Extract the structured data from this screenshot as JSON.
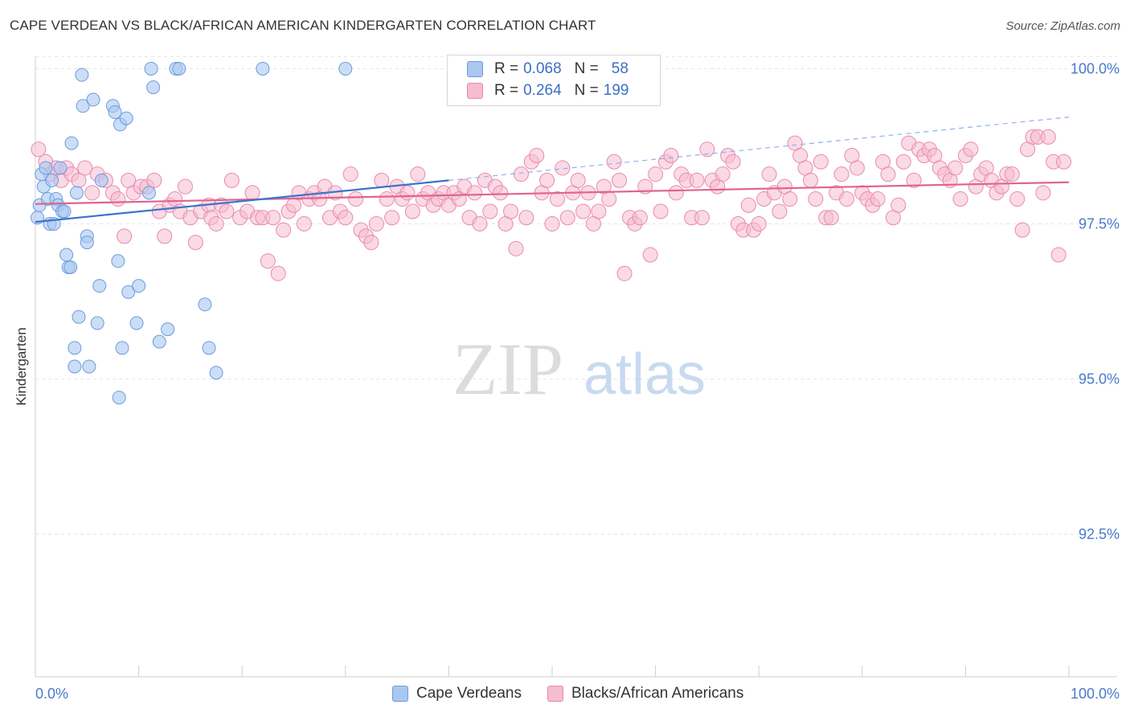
{
  "header": {
    "title": "CAPE VERDEAN VS BLACK/AFRICAN AMERICAN KINDERGARTEN CORRELATION CHART",
    "source": "Source: ZipAtlas.com"
  },
  "watermark": {
    "zip": "ZIP",
    "atlas": "atlas"
  },
  "legend": {
    "rows": [
      {
        "r_label": "R =",
        "r_value": "0.068",
        "n_label": "N =",
        "n_value": "58",
        "color": "#a9c8f0",
        "border": "#6b9be0"
      },
      {
        "r_label": "R =",
        "r_value": "0.264",
        "n_label": "N =",
        "n_value": "199",
        "color": "#f6bcd0",
        "border": "#e88aae"
      }
    ]
  },
  "bottom_legend": [
    {
      "label": "Cape Verdeans",
      "color": "#a9c8f0",
      "border": "#6b9be0"
    },
    {
      "label": "Blacks/African Americans",
      "color": "#f6bcd0",
      "border": "#e88aae"
    }
  ],
  "chart_data": {
    "type": "scatter",
    "title": "CAPE VERDEAN VS BLACK/AFRICAN AMERICAN KINDERGARTEN CORRELATION CHART",
    "xlabel": "",
    "ylabel": "Kindergarten",
    "xlim": [
      0,
      100
    ],
    "ylim": [
      90.2,
      100.2
    ],
    "x_tick_labels": [
      "0.0%",
      "100.0%"
    ],
    "y_ticks": [
      92.5,
      95.0,
      97.5,
      100.0
    ],
    "y_tick_labels": [
      "92.5%",
      "95.0%",
      "97.5%",
      "100.0%"
    ],
    "grid": true,
    "legend_position": "top-center",
    "series": [
      {
        "name": "Cape Verdeans",
        "color": "#a9c8f0",
        "stroke": "#6b9be0",
        "line_color": "#3a74cc",
        "trend": {
          "x0": 0,
          "y0": 97.53,
          "x1": 40,
          "y1": 98.2,
          "dash_to": 100,
          "dash_y": 99.22
        },
        "points": [
          [
            0.2,
            97.6
          ],
          [
            0.4,
            97.8
          ],
          [
            0.6,
            98.3
          ],
          [
            0.8,
            98.1
          ],
          [
            1.0,
            98.4
          ],
          [
            1.2,
            97.9
          ],
          [
            1.4,
            97.5
          ],
          [
            1.6,
            98.2
          ],
          [
            1.8,
            97.5
          ],
          [
            2.0,
            97.9
          ],
          [
            2.2,
            97.8
          ],
          [
            2.4,
            98.4
          ],
          [
            2.6,
            97.7
          ],
          [
            2.8,
            97.7
          ],
          [
            3.0,
            97.0
          ],
          [
            3.2,
            96.8
          ],
          [
            3.4,
            96.8
          ],
          [
            3.5,
            98.8
          ],
          [
            3.8,
            95.5
          ],
          [
            3.8,
            95.2
          ],
          [
            4.0,
            98.0
          ],
          [
            4.2,
            96.0
          ],
          [
            4.5,
            99.9
          ],
          [
            4.6,
            99.4
          ],
          [
            5.0,
            97.3
          ],
          [
            5.0,
            97.2
          ],
          [
            5.2,
            95.2
          ],
          [
            5.6,
            99.5
          ],
          [
            6.0,
            95.9
          ],
          [
            6.2,
            96.5
          ],
          [
            6.4,
            98.2
          ],
          [
            7.5,
            99.4
          ],
          [
            7.7,
            99.3
          ],
          [
            8.0,
            96.9
          ],
          [
            8.1,
            94.7
          ],
          [
            8.2,
            99.1
          ],
          [
            8.4,
            95.5
          ],
          [
            8.8,
            99.2
          ],
          [
            9.0,
            96.4
          ],
          [
            9.8,
            95.9
          ],
          [
            10.0,
            96.5
          ],
          [
            11.0,
            98.0
          ],
          [
            11.2,
            100.0
          ],
          [
            11.4,
            99.7
          ],
          [
            12.0,
            95.6
          ],
          [
            12.8,
            95.8
          ],
          [
            13.6,
            100.0
          ],
          [
            13.9,
            100.0
          ],
          [
            16.4,
            96.2
          ],
          [
            16.8,
            95.5
          ],
          [
            17.5,
            95.1
          ],
          [
            22.0,
            100.0
          ],
          [
            30.0,
            100.0
          ]
        ]
      },
      {
        "name": "Blacks/African Americans",
        "color": "#f6bcd0",
        "stroke": "#e88aae",
        "line_color": "#e0648e",
        "trend": {
          "x0": 0,
          "y0": 97.82,
          "x1": 100,
          "y1": 98.17
        },
        "points": [
          [
            0.3,
            98.7
          ],
          [
            1.0,
            98.5
          ],
          [
            1.5,
            98.3
          ],
          [
            2.0,
            98.4
          ],
          [
            2.5,
            98.2
          ],
          [
            3.0,
            98.4
          ],
          [
            3.5,
            98.3
          ],
          [
            4.2,
            98.2
          ],
          [
            4.8,
            98.4
          ],
          [
            5.5,
            98.0
          ],
          [
            6.0,
            98.3
          ],
          [
            6.8,
            98.2
          ],
          [
            7.5,
            98.0
          ],
          [
            8.0,
            97.9
          ],
          [
            8.6,
            97.3
          ],
          [
            9.0,
            98.2
          ],
          [
            9.5,
            98.0
          ],
          [
            10.2,
            98.1
          ],
          [
            10.8,
            98.1
          ],
          [
            11.5,
            98.2
          ],
          [
            12.0,
            97.7
          ],
          [
            12.5,
            97.3
          ],
          [
            13.0,
            97.8
          ],
          [
            13.5,
            97.9
          ],
          [
            14.0,
            97.7
          ],
          [
            14.5,
            98.1
          ],
          [
            15.0,
            97.6
          ],
          [
            15.5,
            97.2
          ],
          [
            16.0,
            97.7
          ],
          [
            16.8,
            97.8
          ],
          [
            17.0,
            97.6
          ],
          [
            17.5,
            97.5
          ],
          [
            18.0,
            97.8
          ],
          [
            18.5,
            97.7
          ],
          [
            19.0,
            98.2
          ],
          [
            19.8,
            97.6
          ],
          [
            20.5,
            97.7
          ],
          [
            21.0,
            98.0
          ],
          [
            21.5,
            97.6
          ],
          [
            22.0,
            97.6
          ],
          [
            22.5,
            96.9
          ],
          [
            23.0,
            97.6
          ],
          [
            23.5,
            96.7
          ],
          [
            24.0,
            97.4
          ],
          [
            24.5,
            97.7
          ],
          [
            25.0,
            97.8
          ],
          [
            25.5,
            98.0
          ],
          [
            26.0,
            97.5
          ],
          [
            26.5,
            97.9
          ],
          [
            27.0,
            98.0
          ],
          [
            27.5,
            97.9
          ],
          [
            28.0,
            98.1
          ],
          [
            28.5,
            97.6
          ],
          [
            29.0,
            98.0
          ],
          [
            29.5,
            97.7
          ],
          [
            30.0,
            97.6
          ],
          [
            30.5,
            98.3
          ],
          [
            31.0,
            97.9
          ],
          [
            31.5,
            97.4
          ],
          [
            32.0,
            97.3
          ],
          [
            32.5,
            97.2
          ],
          [
            33.0,
            97.5
          ],
          [
            33.5,
            98.2
          ],
          [
            34.0,
            97.9
          ],
          [
            34.5,
            97.6
          ],
          [
            35.0,
            98.1
          ],
          [
            35.5,
            97.9
          ],
          [
            36.0,
            98.0
          ],
          [
            36.5,
            97.7
          ],
          [
            37.0,
            98.3
          ],
          [
            37.5,
            97.9
          ],
          [
            38.0,
            98.0
          ],
          [
            38.5,
            97.8
          ],
          [
            39.0,
            97.9
          ],
          [
            39.5,
            98.0
          ],
          [
            40.0,
            97.8
          ],
          [
            40.5,
            98.0
          ],
          [
            41.0,
            97.9
          ],
          [
            41.5,
            98.1
          ],
          [
            42.0,
            97.6
          ],
          [
            42.5,
            98.0
          ],
          [
            43.0,
            97.5
          ],
          [
            43.5,
            98.2
          ],
          [
            44.0,
            97.7
          ],
          [
            44.5,
            98.1
          ],
          [
            45.0,
            98.0
          ],
          [
            45.5,
            97.5
          ],
          [
            46.0,
            97.7
          ],
          [
            46.5,
            97.1
          ],
          [
            47.0,
            98.3
          ],
          [
            47.5,
            97.6
          ],
          [
            48.0,
            98.5
          ],
          [
            48.5,
            98.6
          ],
          [
            49.0,
            98.0
          ],
          [
            49.5,
            98.2
          ],
          [
            50.0,
            97.5
          ],
          [
            50.5,
            97.9
          ],
          [
            51.0,
            98.4
          ],
          [
            51.5,
            97.6
          ],
          [
            52.0,
            98.0
          ],
          [
            52.5,
            98.2
          ],
          [
            53.0,
            97.7
          ],
          [
            53.5,
            98.0
          ],
          [
            54.0,
            97.5
          ],
          [
            54.5,
            97.7
          ],
          [
            55.0,
            98.1
          ],
          [
            55.5,
            97.9
          ],
          [
            56.0,
            98.5
          ],
          [
            56.5,
            98.2
          ],
          [
            57.0,
            96.7
          ],
          [
            57.5,
            97.6
          ],
          [
            58.0,
            97.5
          ],
          [
            58.5,
            97.6
          ],
          [
            59.0,
            98.1
          ],
          [
            59.5,
            97.0
          ],
          [
            60.0,
            98.3
          ],
          [
            60.5,
            97.7
          ],
          [
            61.0,
            98.5
          ],
          [
            61.5,
            98.6
          ],
          [
            62.0,
            98.0
          ],
          [
            62.5,
            98.3
          ],
          [
            63.0,
            98.2
          ],
          [
            63.5,
            97.6
          ],
          [
            64.0,
            98.2
          ],
          [
            64.5,
            97.6
          ],
          [
            65.0,
            98.7
          ],
          [
            65.5,
            98.2
          ],
          [
            66.0,
            98.1
          ],
          [
            66.5,
            98.3
          ],
          [
            67.0,
            98.6
          ],
          [
            67.5,
            98.5
          ],
          [
            68.0,
            97.5
          ],
          [
            68.5,
            97.4
          ],
          [
            69.0,
            97.8
          ],
          [
            69.5,
            97.4
          ],
          [
            70.0,
            97.5
          ],
          [
            70.5,
            97.9
          ],
          [
            71.0,
            98.3
          ],
          [
            71.5,
            98.0
          ],
          [
            72.0,
            97.7
          ],
          [
            72.5,
            98.1
          ],
          [
            73.0,
            97.9
          ],
          [
            73.5,
            98.8
          ],
          [
            74.0,
            98.6
          ],
          [
            74.5,
            98.4
          ],
          [
            75.0,
            98.2
          ],
          [
            75.5,
            97.9
          ],
          [
            76.0,
            98.5
          ],
          [
            76.5,
            97.6
          ],
          [
            77.0,
            97.6
          ],
          [
            77.5,
            98.0
          ],
          [
            78.0,
            98.3
          ],
          [
            78.5,
            97.9
          ],
          [
            79.0,
            98.6
          ],
          [
            79.5,
            98.4
          ],
          [
            80.0,
            98.0
          ],
          [
            80.5,
            97.9
          ],
          [
            81.0,
            97.8
          ],
          [
            81.5,
            97.9
          ],
          [
            82.0,
            98.5
          ],
          [
            82.5,
            98.3
          ],
          [
            83.0,
            97.6
          ],
          [
            83.5,
            97.8
          ],
          [
            84.0,
            98.5
          ],
          [
            84.5,
            98.8
          ],
          [
            85.0,
            98.2
          ],
          [
            85.5,
            98.7
          ],
          [
            86.0,
            98.6
          ],
          [
            86.5,
            98.7
          ],
          [
            87.0,
            98.6
          ],
          [
            87.5,
            98.4
          ],
          [
            88.0,
            98.3
          ],
          [
            88.5,
            98.2
          ],
          [
            89.0,
            98.4
          ],
          [
            89.5,
            97.9
          ],
          [
            90.0,
            98.6
          ],
          [
            90.5,
            98.7
          ],
          [
            91.0,
            98.1
          ],
          [
            91.5,
            98.3
          ],
          [
            92.0,
            98.4
          ],
          [
            92.5,
            98.2
          ],
          [
            93.0,
            98.0
          ],
          [
            93.5,
            98.1
          ],
          [
            94.0,
            98.3
          ],
          [
            94.5,
            98.3
          ],
          [
            95.0,
            97.9
          ],
          [
            95.5,
            97.4
          ],
          [
            96.0,
            98.7
          ],
          [
            96.5,
            98.9
          ],
          [
            97.0,
            98.9
          ],
          [
            97.5,
            98.0
          ],
          [
            98.0,
            98.9
          ],
          [
            98.5,
            98.5
          ],
          [
            99.0,
            97.0
          ],
          [
            99.5,
            98.5
          ]
        ]
      }
    ]
  }
}
